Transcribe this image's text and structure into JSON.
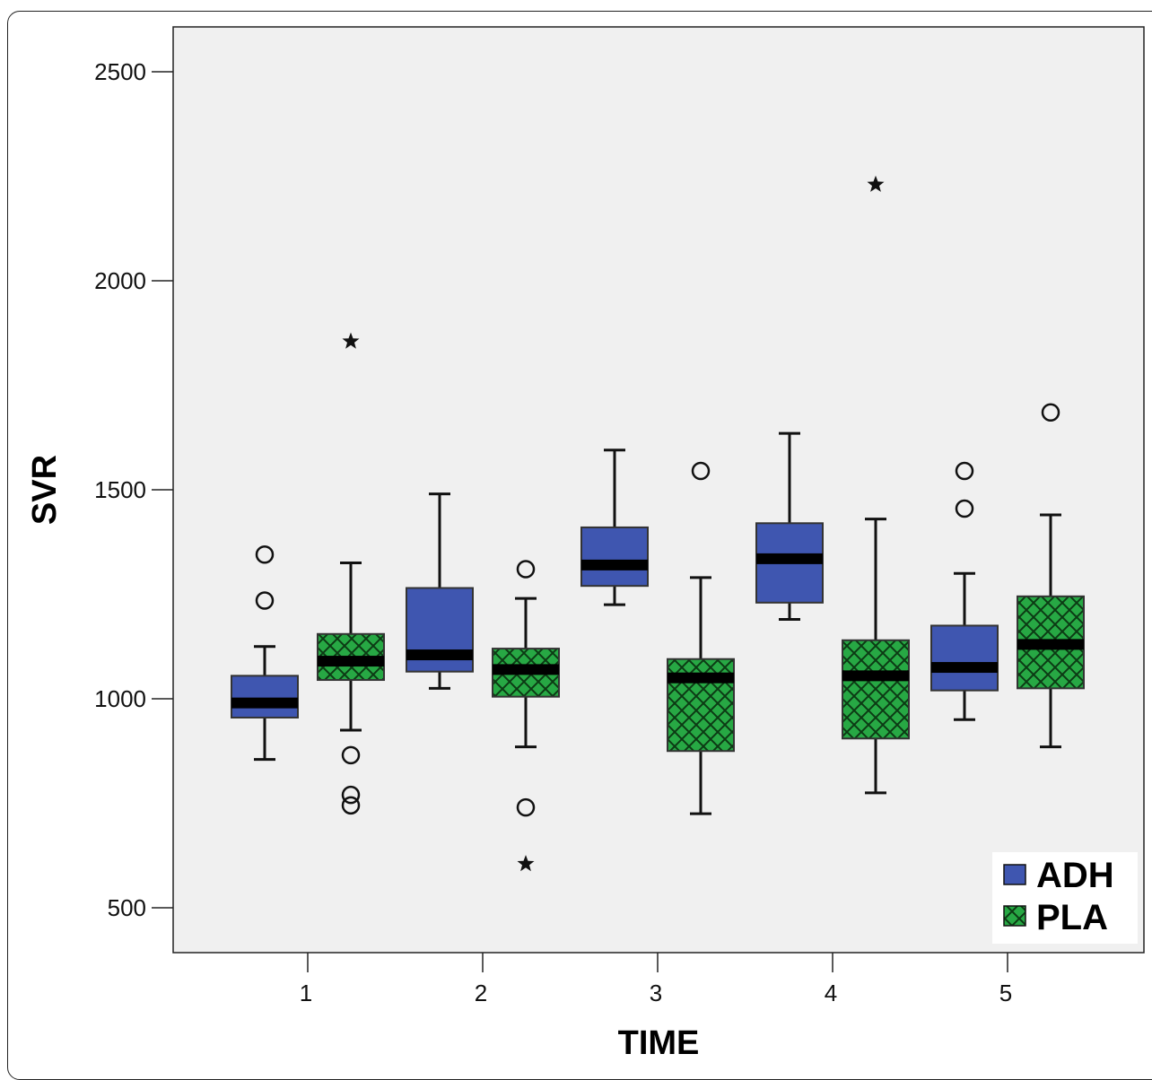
{
  "chart_data": {
    "type": "boxplot",
    "xlabel": "TIME",
    "ylabel": "SVR",
    "categories": [
      "1",
      "2",
      "3",
      "4",
      "5"
    ],
    "yticks": [
      500,
      1000,
      1500,
      2000,
      2500
    ],
    "ylim": [
      390,
      2610
    ],
    "grid": false,
    "legend_position": "bottom-right",
    "series": [
      {
        "name": "ADH",
        "color": "#3f56b0",
        "pattern": "solid",
        "boxes": [
          {
            "whisker_low": 855,
            "q1": 955,
            "median": 990,
            "q3": 1055,
            "whisker_high": 1125,
            "outliers": [
              1345,
              1235
            ],
            "extremes": []
          },
          {
            "whisker_low": 1025,
            "q1": 1065,
            "median": 1105,
            "q3": 1265,
            "whisker_high": 1490,
            "outliers": [],
            "extremes": []
          },
          {
            "whisker_low": 1225,
            "q1": 1270,
            "median": 1320,
            "q3": 1410,
            "whisker_high": 1595,
            "outliers": [],
            "extremes": []
          },
          {
            "whisker_low": 1190,
            "q1": 1230,
            "median": 1335,
            "q3": 1420,
            "whisker_high": 1635,
            "outliers": [],
            "extremes": []
          },
          {
            "whisker_low": 950,
            "q1": 1020,
            "median": 1075,
            "q3": 1175,
            "whisker_high": 1300,
            "outliers": [
              1545,
              1455
            ],
            "extremes": []
          }
        ]
      },
      {
        "name": "PLA",
        "color": "#27a844",
        "pattern": "crosshatch",
        "boxes": [
          {
            "whisker_low": 925,
            "q1": 1045,
            "median": 1090,
            "q3": 1155,
            "whisker_high": 1325,
            "outliers": [
              865,
              770,
              745
            ],
            "extremes": [
              1855
            ]
          },
          {
            "whisker_low": 885,
            "q1": 1005,
            "median": 1070,
            "q3": 1120,
            "whisker_high": 1240,
            "outliers": [
              1310,
              740
            ],
            "extremes": [
              605
            ]
          },
          {
            "whisker_low": 725,
            "q1": 875,
            "median": 1050,
            "q3": 1095,
            "whisker_high": 1290,
            "outliers": [
              1545
            ],
            "extremes": []
          },
          {
            "whisker_low": 775,
            "q1": 905,
            "median": 1055,
            "q3": 1140,
            "whisker_high": 1430,
            "outliers": [],
            "extremes": [
              2230
            ]
          },
          {
            "whisker_low": 885,
            "q1": 1025,
            "median": 1130,
            "q3": 1245,
            "whisker_high": 1440,
            "outliers": [
              1685
            ],
            "extremes": []
          }
        ]
      }
    ]
  }
}
